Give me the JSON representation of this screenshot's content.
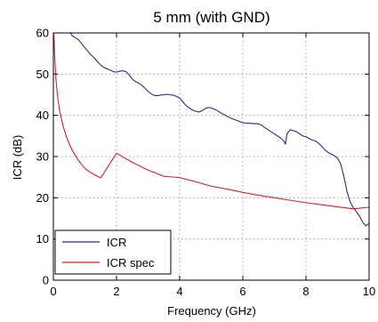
{
  "chart_data": {
    "type": "line",
    "title": "5 mm (with GND)",
    "xlabel": "Frequency (GHz)",
    "ylabel": "ICR (dB)",
    "xlim": [
      0,
      10
    ],
    "ylim": [
      0,
      60
    ],
    "xticks": [
      0,
      2,
      4,
      6,
      8,
      10
    ],
    "yticks": [
      0,
      10,
      20,
      30,
      40,
      50,
      60
    ],
    "grid": true,
    "legend_position": "bottom-left",
    "series": [
      {
        "name": "ICR",
        "color": "#2b2b8c",
        "x": [
          0.0,
          0.1,
          0.2,
          0.3,
          0.4,
          0.5,
          0.55,
          0.6,
          0.7,
          0.8,
          0.9,
          1.0,
          1.1,
          1.2,
          1.3,
          1.4,
          1.5,
          1.6,
          1.7,
          1.8,
          1.9,
          2.0,
          2.1,
          2.2,
          2.3,
          2.4,
          2.5,
          2.6,
          2.7,
          2.8,
          2.9,
          3.0,
          3.1,
          3.2,
          3.3,
          3.4,
          3.5,
          3.6,
          3.7,
          3.8,
          3.9,
          4.0,
          4.1,
          4.2,
          4.3,
          4.4,
          4.5,
          4.6,
          4.7,
          4.8,
          4.9,
          5.0,
          5.1,
          5.2,
          5.3,
          5.4,
          5.5,
          5.6,
          5.7,
          5.8,
          5.9,
          6.0,
          6.1,
          6.2,
          6.3,
          6.4,
          6.5,
          6.6,
          6.7,
          6.8,
          6.9,
          7.0,
          7.1,
          7.2,
          7.3,
          7.35,
          7.4,
          7.5,
          7.6,
          7.7,
          7.8,
          7.9,
          8.0,
          8.1,
          8.2,
          8.3,
          8.4,
          8.5,
          8.6,
          8.7,
          8.8,
          8.9,
          9.0,
          9.1,
          9.2,
          9.3,
          9.4,
          9.5,
          9.6,
          9.7,
          9.8,
          9.9,
          10.0
        ],
        "y": [
          60.0,
          60.0,
          60.0,
          60.0,
          60.0,
          60.0,
          59.9,
          59.3,
          58.8,
          58.3,
          57.4,
          56.4,
          55.5,
          54.6,
          53.9,
          53.0,
          52.2,
          51.6,
          51.3,
          51.0,
          50.6,
          50.5,
          50.7,
          50.8,
          50.6,
          49.8,
          48.8,
          48.2,
          47.8,
          47.3,
          46.6,
          45.8,
          45.2,
          44.8,
          44.8,
          44.9,
          45.0,
          45.1,
          45.0,
          44.9,
          44.6,
          44.2,
          43.3,
          42.4,
          41.8,
          41.3,
          41.0,
          40.8,
          41.1,
          41.6,
          41.9,
          41.8,
          41.5,
          41.1,
          40.6,
          40.2,
          39.8,
          39.4,
          39.1,
          38.8,
          38.5,
          38.2,
          38.1,
          38.1,
          38.0,
          38.0,
          37.9,
          37.6,
          37.0,
          36.5,
          36.0,
          35.5,
          35.0,
          34.5,
          33.8,
          33.0,
          35.5,
          36.5,
          36.3,
          36.0,
          35.5,
          35.0,
          34.8,
          34.4,
          34.0,
          33.8,
          33.2,
          32.5,
          31.6,
          31.0,
          30.6,
          30.2,
          29.6,
          28.2,
          25.2,
          21.5,
          19.0,
          17.6,
          16.6,
          15.5,
          14.0,
          13.2,
          13.8
        ]
      },
      {
        "name": "ICR spec",
        "color": "#d0202a",
        "x": [
          0.0,
          0.02,
          0.05,
          0.08,
          0.1,
          0.15,
          0.2,
          0.3,
          0.4,
          0.5,
          0.6,
          0.7,
          0.8,
          1.0,
          1.2,
          1.5,
          2.0,
          2.5,
          3.0,
          3.5,
          4.0,
          4.5,
          5.0,
          5.5,
          6.0,
          6.5,
          7.0,
          7.5,
          8.0,
          8.5,
          9.0,
          9.5,
          10.0
        ],
        "y": [
          60.0,
          59.0,
          53.0,
          49.1,
          47.1,
          43.6,
          41.1,
          37.6,
          35.1,
          33.1,
          31.5,
          30.2,
          29.0,
          27.1,
          26.0,
          24.8,
          30.8,
          28.6,
          26.7,
          25.2,
          24.9,
          23.9,
          22.8,
          22.1,
          21.3,
          20.6,
          20.0,
          19.4,
          18.8,
          18.3,
          17.8,
          17.3,
          17.7
        ]
      }
    ]
  }
}
